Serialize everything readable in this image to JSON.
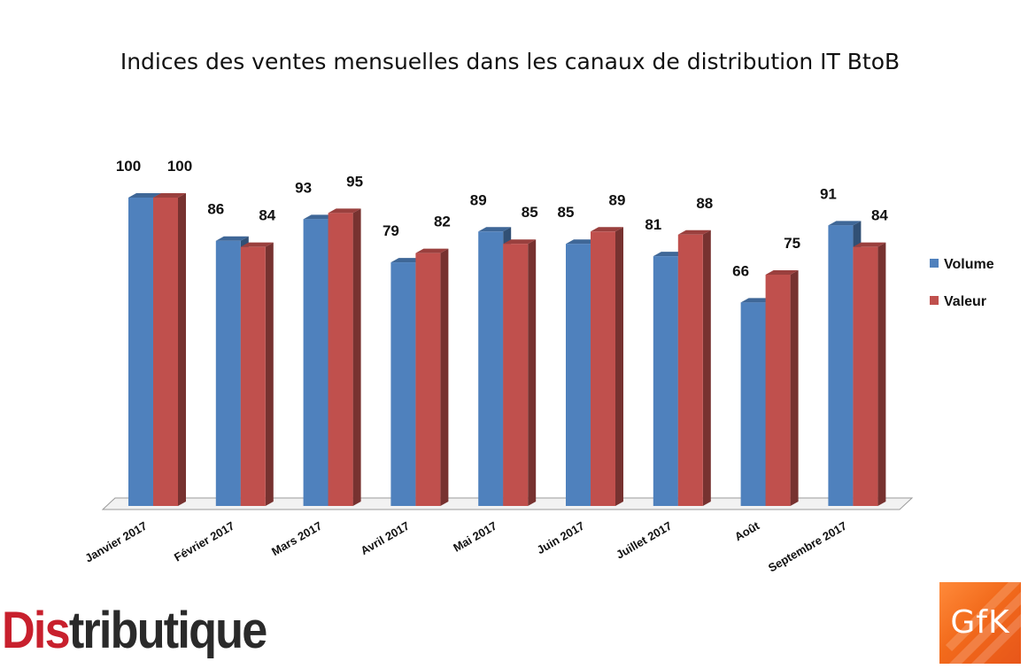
{
  "chart_data": {
    "type": "bar",
    "title": "Indices des ventes mensuelles dans les canaux de distribution IT BtoB",
    "categories": [
      "Janvier 2017",
      "Février 2017",
      "Mars 2017",
      "Avril 2017",
      "Mai 2017",
      "Juin 2017",
      "Juillet 2017",
      "Août",
      "Septembre 2017"
    ],
    "series": [
      {
        "name": "Volume",
        "values": [
          100,
          86,
          93,
          79,
          89,
          85,
          81,
          66,
          91
        ],
        "color": "#4f81bd"
      },
      {
        "name": "Valeur",
        "values": [
          100,
          84,
          95,
          82,
          85,
          89,
          88,
          75,
          84
        ],
        "color": "#c0504d"
      }
    ],
    "legend_position": "right",
    "grid": false,
    "style": "3d-columns"
  },
  "logos": {
    "left_red": "Dis",
    "left_dark": "tributique",
    "right": "GfK"
  }
}
